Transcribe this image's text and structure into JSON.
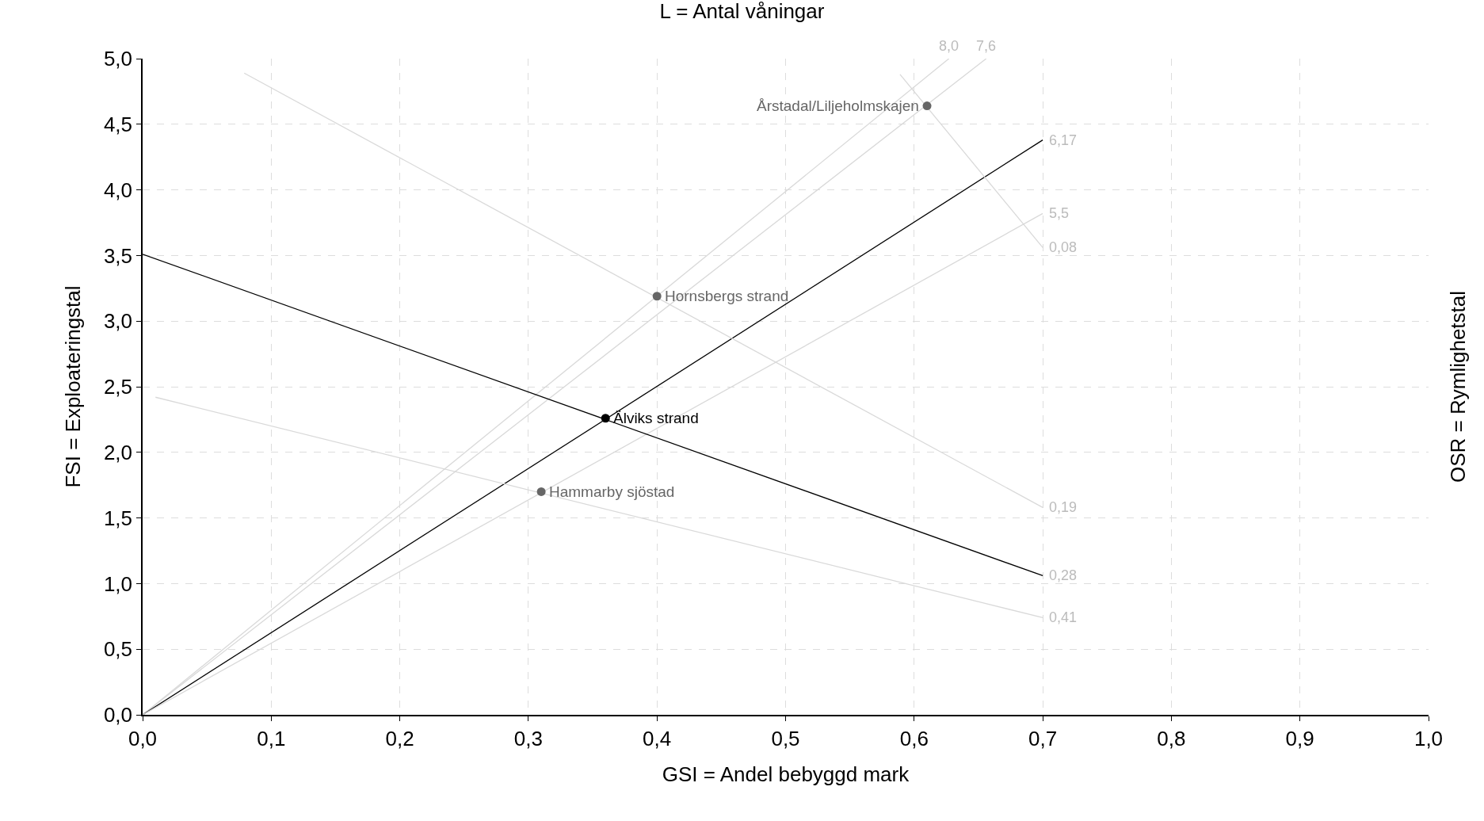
{
  "chart_data": {
    "type": "line",
    "title": "L = Antal våningar",
    "xlabel": "GSI = Andel bebyggd mark",
    "ylabel": "FSI = Exploateringstal",
    "y2label": "OSR = Rymlighetstal",
    "xlim": [
      0,
      1
    ],
    "ylim": [
      0,
      5
    ],
    "xticks": [
      {
        "value": 0,
        "label": "0,0"
      },
      {
        "value": 0.1,
        "label": "0,1"
      },
      {
        "value": 0.2,
        "label": "0,2"
      },
      {
        "value": 0.3,
        "label": "0,3"
      },
      {
        "value": 0.4,
        "label": "0,4"
      },
      {
        "value": 0.5,
        "label": "0,5"
      },
      {
        "value": 0.6,
        "label": "0,6"
      },
      {
        "value": 0.7,
        "label": "0,7"
      },
      {
        "value": 0.8,
        "label": "0,8"
      },
      {
        "value": 0.9,
        "label": "0,9"
      },
      {
        "value": 1,
        "label": "1,0"
      }
    ],
    "yticks": [
      {
        "value": 0,
        "label": "0,0"
      },
      {
        "value": 0.5,
        "label": "0,5"
      },
      {
        "value": 1,
        "label": "1,0"
      },
      {
        "value": 1.5,
        "label": "1,5"
      },
      {
        "value": 2,
        "label": "2,0"
      },
      {
        "value": 2.5,
        "label": "2,5"
      },
      {
        "value": 3,
        "label": "3,0"
      },
      {
        "value": 3.5,
        "label": "3,5"
      },
      {
        "value": 4,
        "label": "4,0"
      },
      {
        "value": 4.5,
        "label": "4,5"
      },
      {
        "value": 5,
        "label": "5,0"
      }
    ],
    "grid": true,
    "line_style": "solid",
    "marker": "none",
    "series": [
      {
        "color": "#d9d9d9",
        "x": [
          0,
          0.627
        ],
        "values": [
          0,
          5.0
        ]
      },
      {
        "color": "#d9d9d9",
        "x": [
          0,
          0.656
        ],
        "values": [
          0,
          5.0
        ]
      },
      {
        "color": "#000000",
        "x": [
          0,
          0.7
        ],
        "values": [
          0,
          4.38
        ]
      },
      {
        "color": "#d9d9d9",
        "x": [
          0,
          0.7
        ],
        "values": [
          0,
          3.82
        ]
      },
      {
        "color": "#d9d9d9",
        "x": [
          0.589,
          0.7
        ],
        "values": [
          4.88,
          3.56
        ]
      },
      {
        "color": "#d9d9d9",
        "x": [
          0.079,
          0.7
        ],
        "values": [
          4.89,
          1.58
        ]
      },
      {
        "color": "#000000",
        "x": [
          0,
          0.7
        ],
        "values": [
          3.51,
          1.06
        ]
      },
      {
        "color": "#d9d9d9",
        "x": [
          0.01,
          0.7
        ],
        "values": [
          2.42,
          0.74
        ]
      },
      {
        "type": "scatter",
        "marker": "circle",
        "x": [
          0.61,
          0.4,
          0.36,
          0.31
        ],
        "values": [
          4.64,
          3.19,
          2.26,
          1.7
        ],
        "colors": [
          "#666666",
          "#666666",
          "#000000",
          "#666666"
        ]
      }
    ],
    "annotations": [
      {
        "text": "8,0",
        "x": 0.627,
        "y": 5.0
      },
      {
        "text": "7,6",
        "x": 0.656,
        "y": 5.0
      },
      {
        "text": "6,17",
        "x": 0.7,
        "y": 4.38
      },
      {
        "text": "5,5",
        "x": 0.7,
        "y": 3.82
      },
      {
        "text": "0,08",
        "x": 0.7,
        "y": 3.56
      },
      {
        "text": "0,19",
        "x": 0.7,
        "y": 1.58
      },
      {
        "text": "0,28",
        "x": 0.7,
        "y": 1.06
      },
      {
        "text": "0,41",
        "x": 0.7,
        "y": 0.74
      },
      {
        "text": "Årstadal/Liljeholmskajen",
        "x": 0.61,
        "y": 4.64
      },
      {
        "text": "Hornsbergs strand",
        "x": 0.4,
        "y": 3.19
      },
      {
        "text": "Älviks strand",
        "x": 0.36,
        "y": 2.26
      },
      {
        "text": "Hammarby sjöstad",
        "x": 0.31,
        "y": 1.7
      }
    ]
  }
}
